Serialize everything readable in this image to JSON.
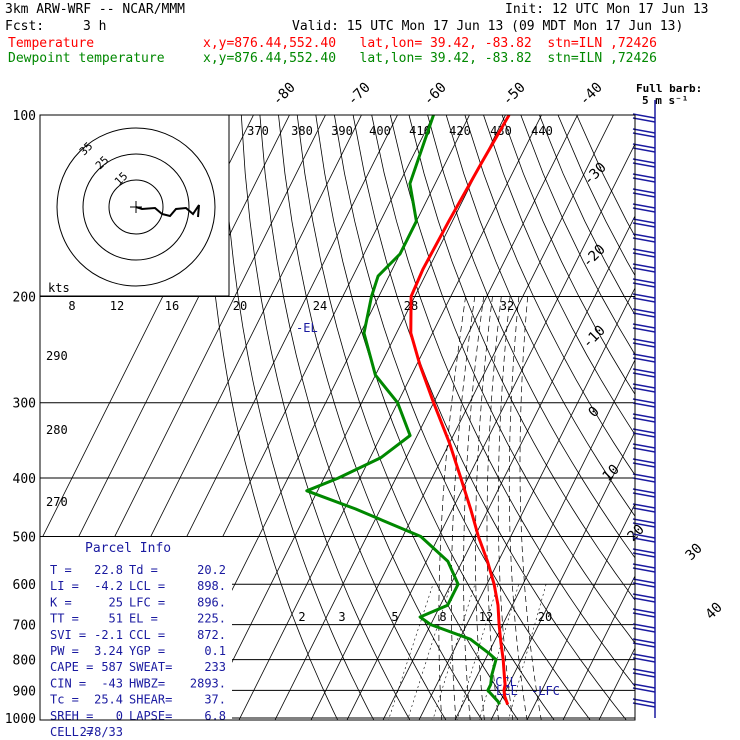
{
  "header": {
    "model": "3km ARW-WRF -- NCAR/MMM",
    "init": "Init: 12 UTC Mon 17 Jun 13",
    "fcst_label": "Fcst:",
    "fcst_value": "3 h",
    "valid": "Valid: 15 UTC Mon 17 Jun 13 (09 MDT Mon 17 Jun 13)",
    "temp_label": "Temperature",
    "temp_loc": "x,y=876.44,552.40   lat,lon= 39.42, -83.82  stn=ILN ,72426",
    "dew_label": "Dewpoint temperature",
    "dew_loc": "x,y=876.44,552.40   lat,lon= 39.42, -83.82  stn=ILN ,72426"
  },
  "colors": {
    "temperature": "#ff0000",
    "dewpoint": "#008800",
    "text_blue": "#1a1aa0",
    "wind": "#1a1aa0"
  },
  "barb_legend": {
    "title": "Full barb:",
    "value": "5 m s⁻¹"
  },
  "hodograph": {
    "units": "kts",
    "rings": [
      "15",
      "25",
      "35"
    ]
  },
  "parcel_info": {
    "title": "Parcel Info",
    "rows": [
      [
        "T  =",
        "22.8",
        "Td =",
        "20.2"
      ],
      [
        "LI =",
        "-4.2",
        "LCL =",
        "898."
      ],
      [
        "K  =",
        "25",
        "LFC =",
        "896."
      ],
      [
        "TT =",
        "51",
        "EL  =",
        "225."
      ],
      [
        "SVI =",
        "-2.1",
        "CCL =",
        "872."
      ],
      [
        "PW =",
        "3.24",
        "YGP =",
        "0.1"
      ],
      [
        "CAPE =",
        "587",
        "SWEAT=",
        "233"
      ],
      [
        "CIN =",
        "-43",
        "HWBZ=",
        "2893."
      ],
      [
        "Tc =",
        "25.4",
        "SHEAR=",
        "37."
      ],
      [
        "SREH =",
        "0",
        "LAPSE=",
        "6.8"
      ],
      [
        "CELL =",
        "278/33",
        "",
        ""
      ]
    ]
  },
  "level_labels": {
    "el": "-EL",
    "ccl": "-CCL",
    "lcl": "LCL",
    "lfc": "-LFC"
  },
  "chart_data": {
    "type": "line",
    "title": "",
    "ylabel": "",
    "y_axis": "pressure (hPa, log)",
    "pressure_ticks": [
      100,
      200,
      300,
      400,
      500,
      600,
      700,
      800,
      900,
      1000
    ],
    "isotherm_labels": [
      "-80",
      "-70",
      "-60",
      "-50",
      "-40",
      "-30",
      "-20",
      "-10",
      "0",
      "10",
      "20",
      "30",
      "40"
    ],
    "theta_top_labels": [
      "370",
      "380",
      "390",
      "400",
      "410",
      "420",
      "430",
      "440"
    ],
    "theta_e_labels": [
      "20",
      "24",
      "28",
      "32"
    ],
    "theta_e_left_labels": [
      "8",
      "12",
      "16"
    ],
    "dry_adiabat_labels": [
      "290",
      "280",
      "270"
    ],
    "mixing_ratio_labels": [
      "2",
      "3",
      "5",
      "8",
      "12",
      "20"
    ],
    "series": [
      {
        "name": "Temperature",
        "color": "#ff0000",
        "points": [
          [
            100,
            -59
          ],
          [
            120,
            -60
          ],
          [
            150,
            -61
          ],
          [
            180,
            -61.5
          ],
          [
            200,
            -61
          ],
          [
            230,
            -56
          ],
          [
            260,
            -49
          ],
          [
            300,
            -40
          ],
          [
            350,
            -30
          ],
          [
            400,
            -22
          ],
          [
            450,
            -15
          ],
          [
            500,
            -9
          ],
          [
            550,
            -3
          ],
          [
            600,
            2
          ],
          [
            650,
            6
          ],
          [
            700,
            9
          ],
          [
            750,
            12
          ],
          [
            800,
            15
          ],
          [
            850,
            17.5
          ],
          [
            880,
            19
          ],
          [
            900,
            19.5
          ],
          [
            920,
            20.5
          ],
          [
            950,
            22.5
          ]
        ]
      },
      {
        "name": "Dewpoint temperature",
        "color": "#008800",
        "points": [
          [
            100,
            -80
          ],
          [
            130,
            -77
          ],
          [
            150,
            -70
          ],
          [
            170,
            -70
          ],
          [
            185,
            -73
          ],
          [
            200,
            -72
          ],
          [
            230,
            -69
          ],
          [
            270,
            -60
          ],
          [
            300,
            -50
          ],
          [
            340,
            -42
          ],
          [
            370,
            -47
          ],
          [
            400,
            -56
          ],
          [
            420,
            -63
          ],
          [
            450,
            -47
          ],
          [
            500,
            -25
          ],
          [
            550,
            -14
          ],
          [
            600,
            -8
          ],
          [
            650,
            -8
          ],
          [
            680,
            -14
          ],
          [
            700,
            -10
          ],
          [
            740,
            3
          ],
          [
            780,
            10
          ],
          [
            800,
            13
          ],
          [
            850,
            14
          ],
          [
            880,
            15
          ],
          [
            900,
            15
          ],
          [
            940,
            19.5
          ],
          [
            950,
            20.2
          ]
        ]
      }
    ]
  }
}
